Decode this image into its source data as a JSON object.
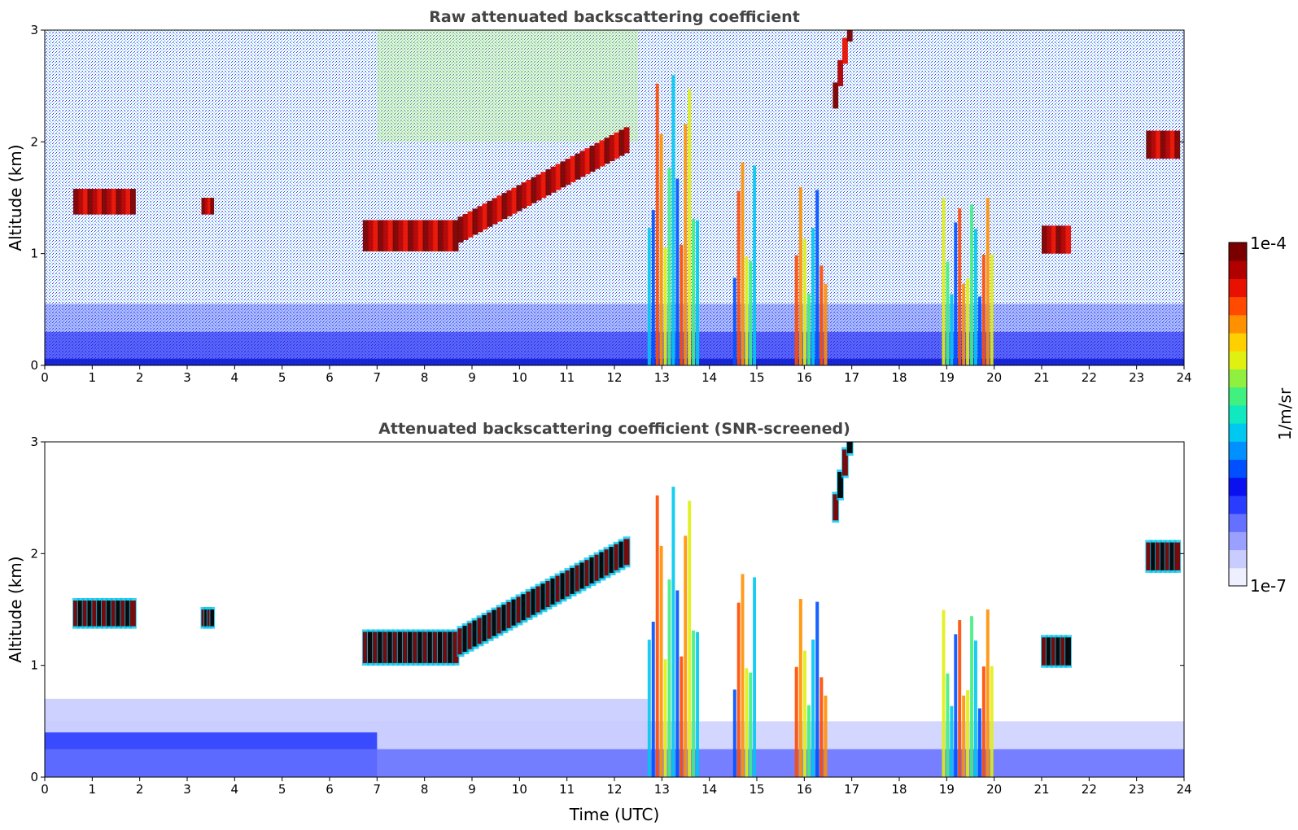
{
  "chart_data": [
    {
      "type": "heatmap",
      "title": "Raw attenuated backscattering coefficient",
      "xlabel": "",
      "ylabel": "Altitude (km)",
      "xlim": [
        0,
        24
      ],
      "ylim": [
        0,
        3
      ],
      "xticks": [
        0,
        1,
        2,
        3,
        4,
        5,
        6,
        7,
        8,
        9,
        10,
        11,
        12,
        13,
        14,
        15,
        16,
        17,
        18,
        19,
        20,
        21,
        22,
        23,
        24
      ],
      "yticks": [
        0,
        1,
        2,
        3
      ],
      "features": [
        {
          "kind": "cloud",
          "t_start": 0.6,
          "t_end": 1.9,
          "alt_base": 1.35,
          "alt_top": 1.58
        },
        {
          "kind": "cloud",
          "t_start": 3.3,
          "t_end": 3.55,
          "alt_base": 1.35,
          "alt_top": 1.5
        },
        {
          "kind": "cloud",
          "t_start": 6.7,
          "t_end": 8.7,
          "alt_base": 1.02,
          "alt_top": 1.3
        },
        {
          "kind": "cloud",
          "t_start": 8.7,
          "t_end": 12.3,
          "alt_base": 1.2,
          "alt_top": 2.0
        },
        {
          "kind": "precipitation",
          "t_start": 12.7,
          "t_end": 13.8,
          "alt_base": 0.0,
          "alt_top": 2.6
        },
        {
          "kind": "precipitation",
          "t_start": 14.5,
          "t_end": 15.0,
          "alt_base": 0.0,
          "alt_top": 1.9
        },
        {
          "kind": "precipitation",
          "t_start": 15.8,
          "t_end": 16.5,
          "alt_base": 0.0,
          "alt_top": 1.6
        },
        {
          "kind": "cloud",
          "t_start": 16.6,
          "t_end": 17.0,
          "alt_base": 2.4,
          "alt_top": 3.0
        },
        {
          "kind": "precipitation",
          "t_start": 18.9,
          "t_end": 20.0,
          "alt_base": 0.0,
          "alt_top": 1.5
        },
        {
          "kind": "cloud",
          "t_start": 21.0,
          "t_end": 21.6,
          "alt_base": 1.0,
          "alt_top": 1.25
        },
        {
          "kind": "cloud",
          "t_start": 23.2,
          "t_end": 23.9,
          "alt_base": 1.85,
          "alt_top": 2.1
        }
      ]
    },
    {
      "type": "heatmap",
      "title": "Attenuated backscattering coefficient (SNR-screened)",
      "xlabel": "Time (UTC)",
      "ylabel": "Altitude (km)",
      "xlim": [
        0,
        24
      ],
      "ylim": [
        0,
        3
      ],
      "xticks": [
        0,
        1,
        2,
        3,
        4,
        5,
        6,
        7,
        8,
        9,
        10,
        11,
        12,
        13,
        14,
        15,
        16,
        17,
        18,
        19,
        20,
        21,
        22,
        23,
        24
      ],
      "yticks": [
        0,
        1,
        2,
        3
      ]
    }
  ],
  "colorbar": {
    "label": "1/m/sr",
    "max_label": "1e-4",
    "min_label": "1e-7",
    "colors": [
      "#eef0ff",
      "#c8ccff",
      "#9aa0ff",
      "#6470ff",
      "#2a3cff",
      "#0a10f0",
      "#0050ff",
      "#0090ff",
      "#00c8f0",
      "#10e8c0",
      "#40f080",
      "#90f040",
      "#e0f010",
      "#ffd000",
      "#ff9000",
      "#ff4a00",
      "#e81000",
      "#b00000",
      "#7a0000"
    ]
  }
}
